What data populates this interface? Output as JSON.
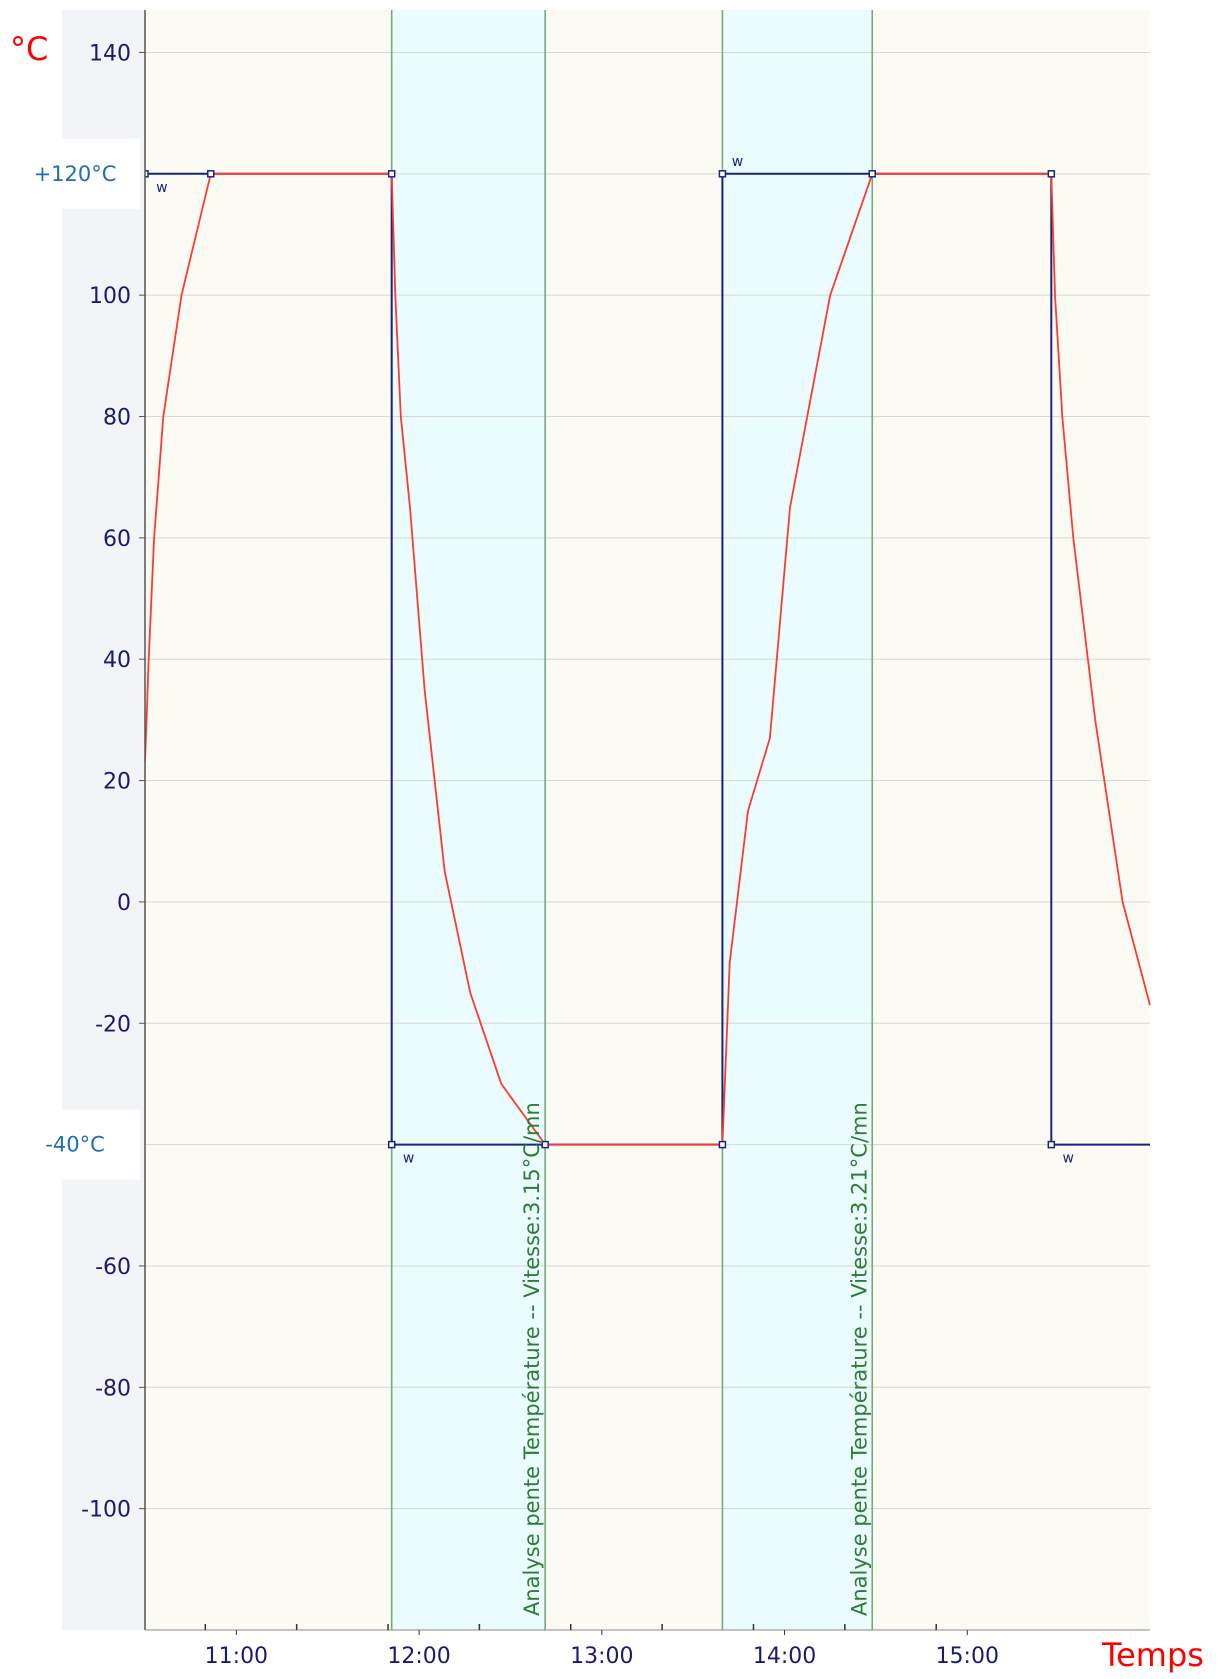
{
  "chart_data": {
    "type": "line",
    "ylabel": "°C",
    "xlabel": "Temps",
    "ylim": [
      -120,
      147
    ],
    "xlim": [
      10.5,
      16.0
    ],
    "y_ticks": [
      140,
      100,
      80,
      60,
      40,
      20,
      0,
      -20,
      -60,
      -80,
      -100
    ],
    "x_ticks": [
      {
        "value": 11.0,
        "label": "11:00"
      },
      {
        "value": 12.0,
        "label": "12:00"
      },
      {
        "value": 13.0,
        "label": "13:00"
      },
      {
        "value": 14.0,
        "label": "14:00"
      },
      {
        "value": 15.0,
        "label": "15:00"
      }
    ],
    "x_minor_ticks": [
      10.83,
      11.33,
      11.83,
      12.33,
      12.83,
      13.33,
      13.83,
      14.33,
      14.83
    ],
    "annotations_y": [
      {
        "value": 120,
        "label": "+120°C"
      },
      {
        "value": -40,
        "label": "-40°C"
      }
    ],
    "grid": true,
    "shaded_regions": [
      {
        "start": 11.85,
        "end": 12.69,
        "label": "Analyse pente Température -- Vitesse:3.15°C/mn"
      },
      {
        "start": 13.66,
        "end": 14.48,
        "label": "Analyse pente Température -- Vitesse:3.21°C/mn"
      }
    ],
    "series": [
      {
        "role": "setpoint",
        "color": "#1a237e",
        "points": [
          [
            10.5,
            120
          ],
          [
            10.86,
            120
          ],
          [
            11.85,
            120
          ],
          [
            11.85,
            -40
          ],
          [
            12.69,
            -40
          ],
          [
            13.66,
            -40
          ],
          [
            13.66,
            120
          ],
          [
            14.48,
            120
          ],
          [
            15.46,
            120
          ],
          [
            15.46,
            -40
          ],
          [
            16.0,
            -40
          ]
        ],
        "markers": [
          [
            10.5,
            120
          ],
          [
            10.86,
            120
          ],
          [
            11.85,
            120
          ],
          [
            11.85,
            -40
          ],
          [
            12.69,
            -40
          ],
          [
            13.66,
            -40
          ],
          [
            13.66,
            120
          ],
          [
            14.48,
            120
          ],
          [
            15.46,
            120
          ],
          [
            15.46,
            -40
          ]
        ],
        "w_labels": [
          [
            10.55,
            120,
            "w"
          ],
          [
            11.9,
            -40,
            "w"
          ],
          [
            13.7,
            120,
            "w"
          ],
          [
            15.51,
            -40,
            "w"
          ]
        ]
      },
      {
        "role": "measured",
        "color": "#ff3b30",
        "points": [
          [
            10.5,
            23
          ],
          [
            10.52,
            40
          ],
          [
            10.55,
            60
          ],
          [
            10.6,
            80
          ],
          [
            10.7,
            100
          ],
          [
            10.86,
            120
          ],
          [
            11.85,
            120
          ],
          [
            11.87,
            100
          ],
          [
            11.9,
            80
          ],
          [
            11.95,
            65
          ],
          [
            12.03,
            35
          ],
          [
            12.14,
            5
          ],
          [
            12.28,
            -15
          ],
          [
            12.45,
            -30
          ],
          [
            12.69,
            -40
          ],
          [
            13.66,
            -40
          ],
          [
            13.7,
            -10
          ],
          [
            13.8,
            15
          ],
          [
            13.92,
            27
          ],
          [
            14.03,
            65
          ],
          [
            14.25,
            100
          ],
          [
            14.48,
            120
          ],
          [
            15.46,
            120
          ],
          [
            15.48,
            100
          ],
          [
            15.52,
            80
          ],
          [
            15.58,
            60
          ],
          [
            15.7,
            30
          ],
          [
            15.85,
            0
          ],
          [
            16.0,
            -17
          ]
        ]
      }
    ]
  }
}
